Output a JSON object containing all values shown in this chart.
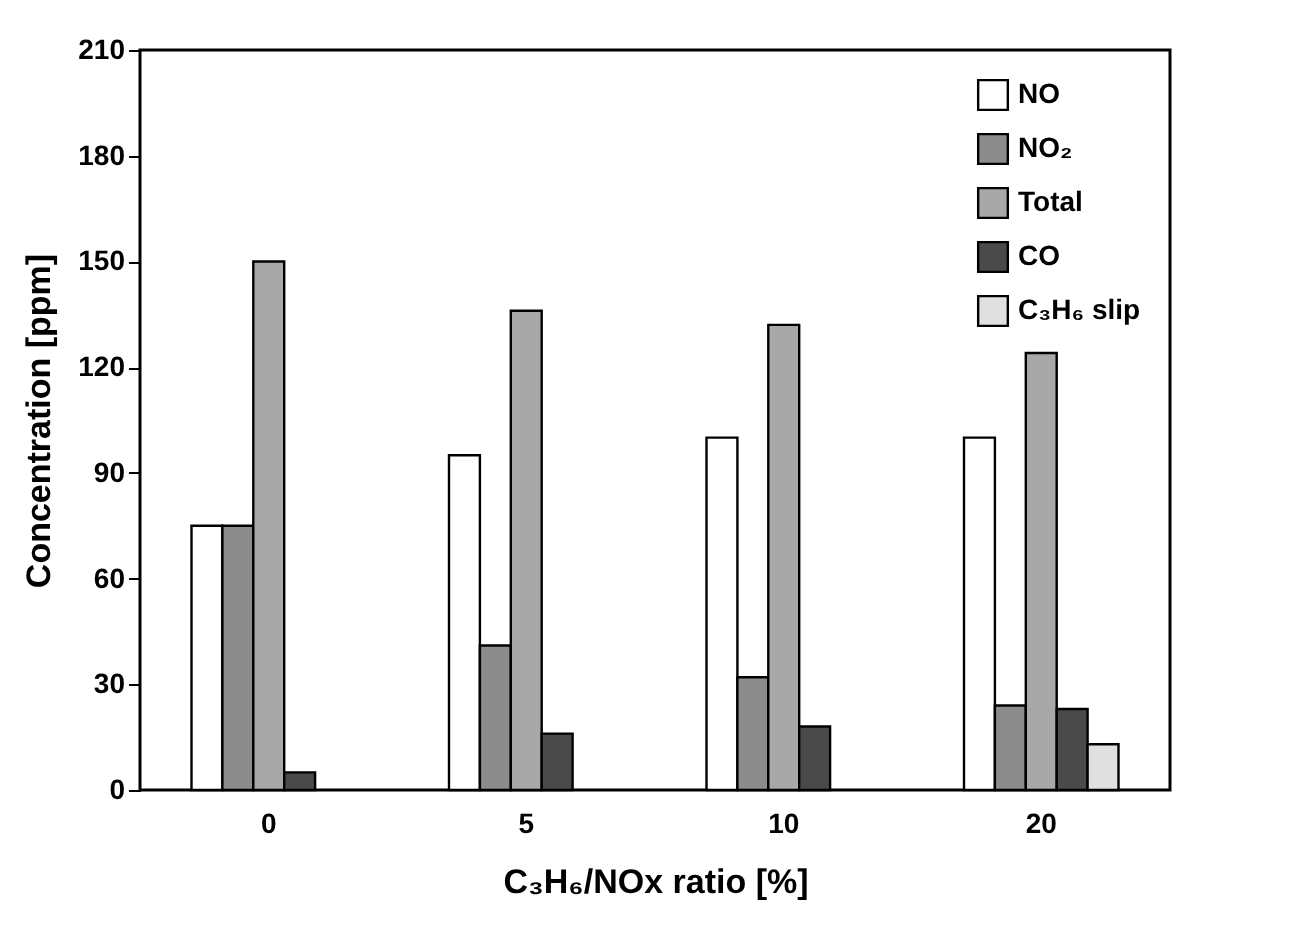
{
  "chart_data": {
    "type": "bar",
    "xlabel": "C₃H₆/NOx ratio [%]",
    "ylabel": "Concentration [ppm]",
    "categories": [
      "0",
      "5",
      "10",
      "20"
    ],
    "series": [
      {
        "name": "NO",
        "color": "#ffffff",
        "values": [
          75,
          95,
          100,
          100
        ]
      },
      {
        "name": "NO₂",
        "color": "#8c8c8c",
        "values": [
          75,
          41,
          32,
          24
        ]
      },
      {
        "name": "Total",
        "color": "#a8a8a8",
        "values": [
          150,
          136,
          132,
          124
        ]
      },
      {
        "name": "CO",
        "color": "#4a4a4a",
        "values": [
          5,
          16,
          18,
          23
        ]
      },
      {
        "name": "C₃H₆ slip",
        "color": "#e0e0e0",
        "values": [
          null,
          null,
          null,
          13
        ]
      }
    ],
    "ylim": [
      0,
      210
    ],
    "yticks": [
      0,
      30,
      60,
      90,
      120,
      150,
      180,
      210
    ],
    "legend": "top right",
    "grid": false
  }
}
